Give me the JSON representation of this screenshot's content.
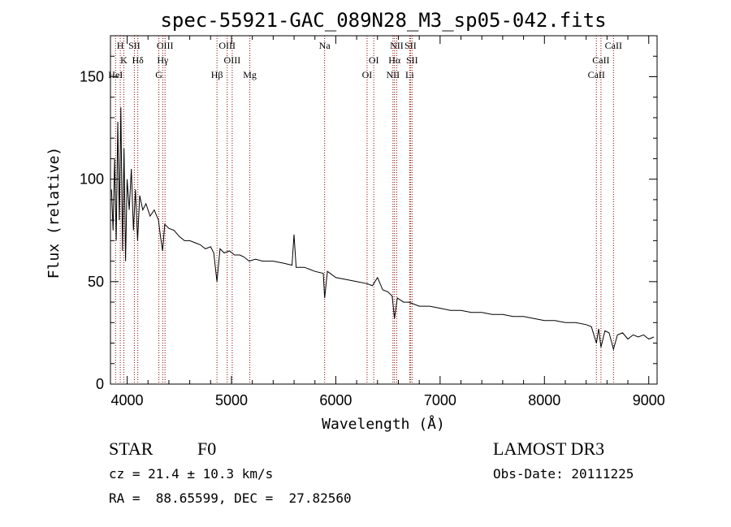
{
  "chart_data": {
    "type": "line",
    "title": "spec-55921-GAC_089N28_M3_sp05-042.fits",
    "xlabel": "Wavelength (Å)",
    "ylabel": "Flux (relative)",
    "xlim": [
      3840,
      9080
    ],
    "ylim": [
      0,
      170
    ],
    "xticks": [
      4000,
      5000,
      6000,
      7000,
      8000,
      9000
    ],
    "yticks": [
      0,
      50,
      100,
      150
    ],
    "line_color": "#000000",
    "marker_color": "#8b0000",
    "series": [
      {
        "name": "flux",
        "x": [
          3850,
          3865,
          3880,
          3895,
          3910,
          3925,
          3940,
          3955,
          3970,
          3985,
          4000,
          4020,
          4040,
          4060,
          4080,
          4100,
          4120,
          4150,
          4180,
          4220,
          4260,
          4300,
          4320,
          4340,
          4360,
          4400,
          4450,
          4500,
          4550,
          4600,
          4650,
          4700,
          4750,
          4800,
          4830,
          4861,
          4890,
          4930,
          4980,
          5030,
          5080,
          5120,
          5170,
          5230,
          5300,
          5400,
          5500,
          5580,
          5600,
          5620,
          5700,
          5800,
          5880,
          5893,
          5920,
          6000,
          6100,
          6200,
          6300,
          6350,
          6400,
          6450,
          6500,
          6540,
          6563,
          6590,
          6650,
          6700,
          6800,
          6900,
          7000,
          7100,
          7200,
          7300,
          7400,
          7500,
          7600,
          7700,
          7800,
          7900,
          8000,
          8100,
          8200,
          8300,
          8400,
          8450,
          8498,
          8520,
          8542,
          8580,
          8620,
          8662,
          8700,
          8750,
          8800,
          8850,
          8900,
          8950,
          9000,
          9050
        ],
        "y": [
          95,
          75,
          110,
          70,
          128,
          80,
          135,
          65,
          115,
          60,
          100,
          85,
          105,
          75,
          95,
          70,
          92,
          85,
          88,
          82,
          85,
          80,
          72,
          65,
          78,
          76,
          75,
          72,
          70,
          70,
          69,
          68,
          66,
          67,
          64,
          50,
          66,
          64,
          65,
          63,
          63,
          62,
          60,
          61,
          60,
          60,
          59,
          58,
          73,
          57,
          57,
          55,
          54,
          42,
          55,
          52,
          51,
          50,
          49,
          48,
          52,
          46,
          45,
          43,
          32,
          42,
          40,
          40,
          38,
          38,
          37,
          36,
          36,
          35,
          35,
          34,
          34,
          33,
          33,
          32,
          31,
          31,
          30,
          30,
          29,
          28,
          20,
          27,
          18,
          26,
          25,
          17,
          24,
          25,
          22,
          24,
          23,
          24,
          22,
          23
        ]
      }
    ],
    "markers": [
      {
        "label": "H",
        "wl": 3934
      },
      {
        "label": "K",
        "wl": 3968
      },
      {
        "label": "HeI",
        "wl": 3889
      },
      {
        "label": "SII",
        "wl": 4069
      },
      {
        "label": "Hδ",
        "wl": 4102
      },
      {
        "label": "G",
        "wl": 4304
      },
      {
        "label": "OIII",
        "wl": 4363
      },
      {
        "label": "Hγ",
        "wl": 4341
      },
      {
        "label": "Hβ",
        "wl": 4861
      },
      {
        "label": "OIII",
        "wl": 4959
      },
      {
        "label": "OIII",
        "wl": 5007
      },
      {
        "label": "Mg",
        "wl": 5176
      },
      {
        "label": "Na",
        "wl": 5893
      },
      {
        "label": "OI",
        "wl": 6364
      },
      {
        "label": "OI",
        "wl": 6300
      },
      {
        "label": "NII",
        "wl": 6584
      },
      {
        "label": "Hα",
        "wl": 6563
      },
      {
        "label": "NII",
        "wl": 6548
      },
      {
        "label": "SII",
        "wl": 6716
      },
      {
        "label": "SII",
        "wl": 6731
      },
      {
        "label": "Li",
        "wl": 6708
      },
      {
        "label": "CaII",
        "wl": 8662
      },
      {
        "label": "CaII",
        "wl": 8542
      },
      {
        "label": "CaII",
        "wl": 8498
      }
    ]
  },
  "info": {
    "class_label": "STAR",
    "subclass": "F0",
    "survey": "LAMOST DR3",
    "cz": "cz = 21.4 ± 10.3 km/s",
    "obs_date": "Obs-Date: 20111225",
    "coords": "RA =  88.65599, DEC =  27.82560"
  }
}
